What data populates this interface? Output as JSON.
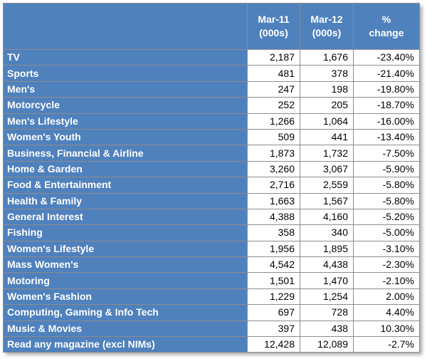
{
  "table": {
    "headers": [
      {
        "line1": "",
        "line2": ""
      },
      {
        "line1": "Mar-11",
        "line2": "(000s)"
      },
      {
        "line1": "Mar-12",
        "line2": "(000s)"
      },
      {
        "line1": "%",
        "line2": "change"
      }
    ],
    "rows": [
      {
        "category": "TV",
        "mar11": "2,187",
        "mar12": "1,676",
        "change": "-23.40%"
      },
      {
        "category": "Sports",
        "mar11": "481",
        "mar12": "378",
        "change": "-21.40%"
      },
      {
        "category": "Men's",
        "mar11": "247",
        "mar12": "198",
        "change": "-19.80%"
      },
      {
        "category": "Motorcycle",
        "mar11": "252",
        "mar12": "205",
        "change": "-18.70%"
      },
      {
        "category": "Men's Lifestyle",
        "mar11": "1,266",
        "mar12": "1,064",
        "change": "-16.00%"
      },
      {
        "category": "Women's Youth",
        "mar11": "509",
        "mar12": "441",
        "change": "-13.40%"
      },
      {
        "category": "Business, Financial & Airline",
        "mar11": "1,873",
        "mar12": "1,732",
        "change": "-7.50%"
      },
      {
        "category": "Home & Garden",
        "mar11": "3,260",
        "mar12": "3,067",
        "change": "-5.90%"
      },
      {
        "category": "Food & Entertainment",
        "mar11": "2,716",
        "mar12": "2,559",
        "change": "-5.80%"
      },
      {
        "category": "Health & Family",
        "mar11": "1,663",
        "mar12": "1,567",
        "change": "-5.80%"
      },
      {
        "category": "General Interest",
        "mar11": "4,388",
        "mar12": "4,160",
        "change": "-5.20%"
      },
      {
        "category": "Fishing",
        "mar11": "358",
        "mar12": "340",
        "change": "-5.00%"
      },
      {
        "category": "Women's Lifestyle",
        "mar11": "1,956",
        "mar12": "1,895",
        "change": "-3.10%"
      },
      {
        "category": "Mass Women's",
        "mar11": "4,542",
        "mar12": "4,438",
        "change": "-2.30%"
      },
      {
        "category": "Motoring",
        "mar11": "1,501",
        "mar12": "1,470",
        "change": "-2.10%"
      },
      {
        "category": "Women's Fashion",
        "mar11": "1,229",
        "mar12": "1,254",
        "change": "2.00%"
      },
      {
        "category": "Computing, Gaming & Info Tech",
        "mar11": "697",
        "mar12": "728",
        "change": "4.40%"
      },
      {
        "category": "Music & Movies",
        "mar11": "397",
        "mar12": "438",
        "change": "10.30%"
      },
      {
        "category": "Read any magazine (excl NIMs)",
        "mar11": "12,428",
        "mar12": "12,089",
        "change": "-2.7%"
      }
    ]
  },
  "colors": {
    "header_fill": "#4f81bd",
    "category_fill": "#4f81bd",
    "value_fill": "#ffffff",
    "grid": "#8c8c8c"
  }
}
